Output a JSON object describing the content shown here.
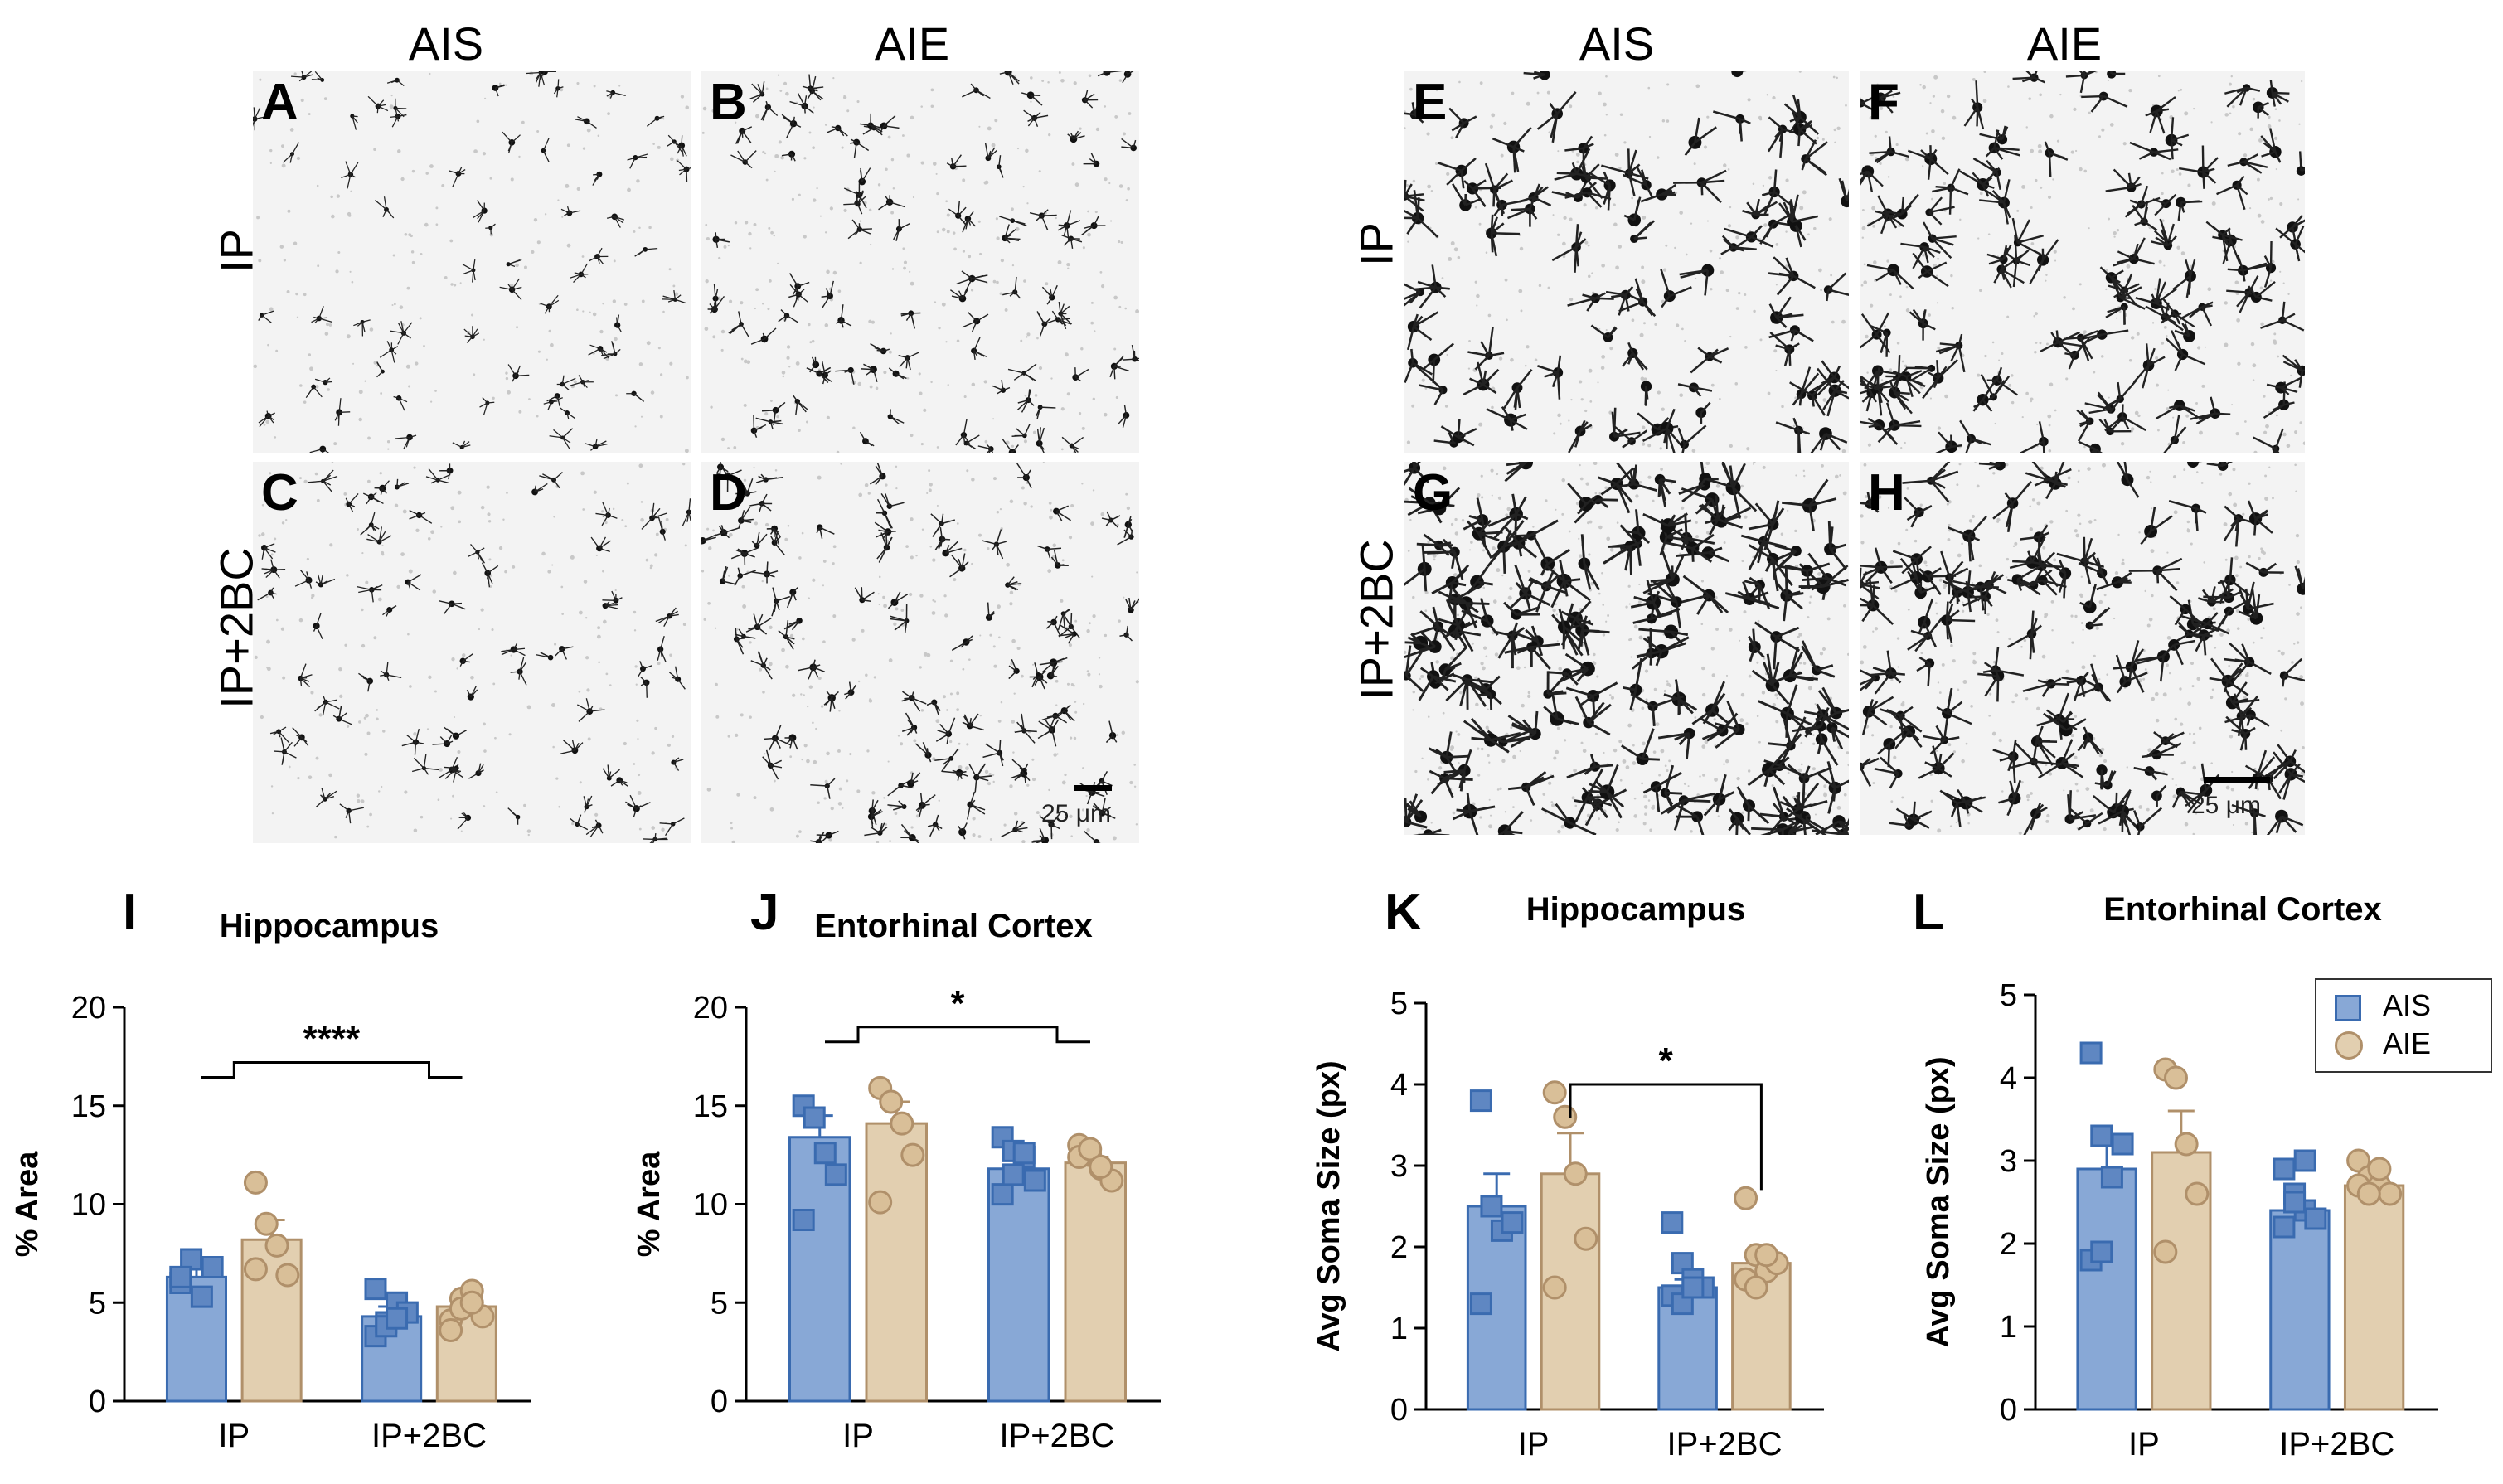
{
  "micro_left": {
    "col_labels": [
      "AIS",
      "AIE"
    ],
    "row_labels": [
      "IP",
      "IP+2BC"
    ],
    "panels": [
      "A",
      "B",
      "C",
      "D"
    ],
    "scale": "25 μm"
  },
  "micro_right": {
    "col_labels": [
      "AIS",
      "AIE"
    ],
    "row_labels": [
      "IP",
      "IP+2BC"
    ],
    "panels": [
      "E",
      "F",
      "G",
      "H"
    ],
    "scale": "25 μm"
  },
  "colors": {
    "ais_fill": "#88a8d6",
    "ais_edge": "#3a6bb0",
    "aie_fill": "#e2cfb0",
    "aie_edge": "#b0906a"
  },
  "legend": {
    "ais": "AIS",
    "aie": "AIE"
  },
  "chart_data": [
    {
      "id": "I",
      "type": "bar",
      "title": "Hippocampus",
      "ylabel": "% Area",
      "categories": [
        "IP",
        "IP+2BC"
      ],
      "ylim": [
        0,
        20
      ],
      "yticks": [
        0,
        5,
        10,
        15,
        20
      ],
      "series": [
        {
          "name": "AIS",
          "values": [
            6.3,
            4.3
          ],
          "sem": [
            0.5,
            0.5
          ],
          "points": [
            [
              6.0,
              7.2,
              5.3,
              6.8,
              6.3
            ],
            [
              3.3,
              4.0,
              5.0,
              4.5,
              5.7,
              3.8,
              4.2
            ]
          ]
        },
        {
          "name": "AIE",
          "values": [
            8.2,
            4.8
          ],
          "sem": [
            1.0,
            0.3
          ],
          "points": [
            [
              11.1,
              9.0,
              7.9,
              6.4,
              6.7
            ],
            [
              4.1,
              5.2,
              5.6,
              4.3,
              3.6,
              4.7,
              5.0
            ]
          ]
        }
      ],
      "significance": {
        "label": "****",
        "from": 0,
        "to": 1,
        "y": 17.2
      }
    },
    {
      "id": "J",
      "type": "bar",
      "title": "Entorhinal Cortex",
      "ylabel": "% Area",
      "categories": [
        "IP",
        "IP+2BC"
      ],
      "ylim": [
        0,
        20
      ],
      "yticks": [
        0,
        5,
        10,
        15,
        20
      ],
      "series": [
        {
          "name": "AIS",
          "values": [
            13.4,
            11.8
          ],
          "sem": [
            1.1,
            0.5
          ],
          "points": [
            [
              15.0,
              14.4,
              12.6,
              11.5,
              9.2
            ],
            [
              13.4,
              12.7,
              12.4,
              11.2,
              10.5,
              11.5,
              12.6
            ]
          ]
        },
        {
          "name": "AIE",
          "values": [
            14.1,
            12.1
          ],
          "sem": [
            1.1,
            0.3
          ],
          "points": [
            [
              15.9,
              15.2,
              14.1,
              12.5,
              10.1
            ],
            [
              13.0,
              12.5,
              11.8,
              11.2,
              12.4,
              12.8,
              11.9
            ]
          ]
        }
      ],
      "significance": {
        "label": "*",
        "from": 0,
        "to": 1,
        "y": 19.0
      }
    },
    {
      "id": "K",
      "type": "bar",
      "title": "Hippocampus",
      "ylabel": "Avg Soma Size (px)",
      "categories": [
        "IP",
        "IP+2BC"
      ],
      "ylim": [
        0,
        5
      ],
      "yticks": [
        0,
        1,
        2,
        3,
        4,
        5
      ],
      "series": [
        {
          "name": "AIS",
          "values": [
            2.5,
            1.5
          ],
          "sem": [
            0.4,
            0.1
          ],
          "points": [
            [
              3.8,
              2.5,
              2.2,
              2.3,
              1.3
            ],
            [
              2.3,
              1.8,
              1.6,
              1.5,
              1.4,
              1.3,
              1.5
            ]
          ]
        },
        {
          "name": "AIE",
          "values": [
            2.9,
            1.8
          ],
          "sem": [
            0.5,
            0.15
          ],
          "points": [
            [
              3.9,
              3.6,
              2.9,
              2.1,
              1.5
            ],
            [
              2.6,
              1.9,
              1.7,
              1.8,
              1.6,
              1.5,
              1.9
            ]
          ]
        }
      ],
      "significance": {
        "label": "*",
        "from": 1,
        "to": 3,
        "y": 4.0
      }
    },
    {
      "id": "L",
      "type": "bar",
      "title": "Entorhinal Cortex",
      "ylabel": "Avg Soma Size (px)",
      "categories": [
        "IP",
        "IP+2BC"
      ],
      "ylim": [
        0,
        5
      ],
      "yticks": [
        0,
        1,
        2,
        3,
        4,
        5
      ],
      "series": [
        {
          "name": "AIS",
          "values": [
            2.9,
            2.4
          ],
          "sem": [
            0.4,
            0.1
          ],
          "points": [
            [
              4.3,
              3.3,
              2.8,
              3.2,
              1.8,
              1.9
            ],
            [
              2.9,
              2.6,
              2.4,
              2.3,
              2.2,
              2.5,
              3.0
            ]
          ]
        },
        {
          "name": "AIE",
          "values": [
            3.1,
            2.7
          ],
          "sem": [
            0.5,
            0.1
          ],
          "points": [
            [
              4.1,
              4.0,
              3.2,
              2.6,
              1.9
            ],
            [
              3.0,
              2.8,
              2.7,
              2.6,
              2.7,
              2.6,
              2.9
            ]
          ]
        }
      ]
    }
  ]
}
